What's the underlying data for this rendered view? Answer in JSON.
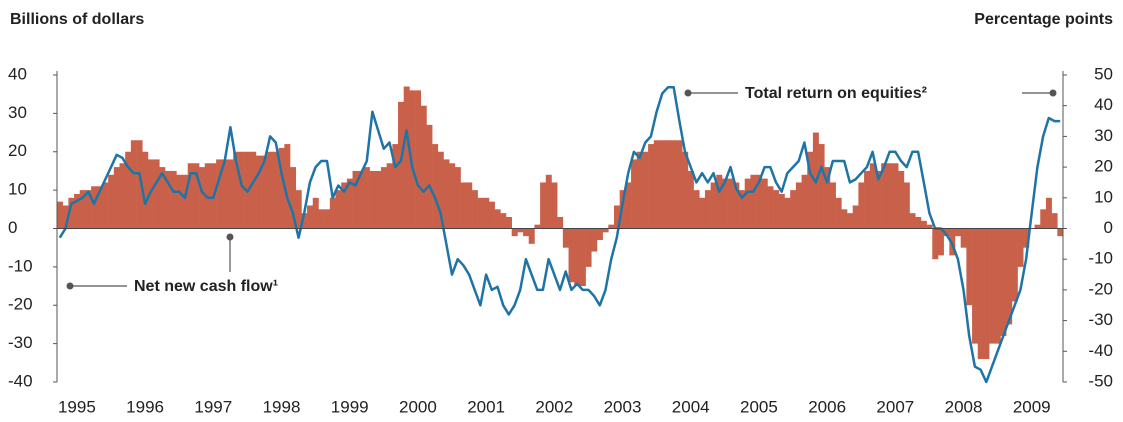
{
  "chart_data": {
    "type": "bar_line",
    "y_label": "Billions of dollars",
    "y2_label": "Percentage points",
    "annotations": [
      "Total return on equities²",
      "Net new cash flow¹"
    ],
    "categories": [
      null,
      null,
      null,
      "1995",
      null,
      null,
      null,
      null,
      null,
      null,
      null,
      null,
      null,
      null,
      null,
      "1996",
      null,
      null,
      null,
      null,
      null,
      null,
      null,
      null,
      null,
      null,
      null,
      "1997",
      null,
      null,
      null,
      null,
      null,
      null,
      null,
      null,
      null,
      null,
      null,
      "1998",
      null,
      null,
      null,
      null,
      null,
      null,
      null,
      null,
      null,
      null,
      null,
      "1999",
      null,
      null,
      null,
      null,
      null,
      null,
      null,
      null,
      null,
      null,
      null,
      "2000",
      null,
      null,
      null,
      null,
      null,
      null,
      null,
      null,
      null,
      null,
      null,
      "2001",
      null,
      null,
      null,
      null,
      null,
      null,
      null,
      null,
      null,
      null,
      null,
      "2002",
      null,
      null,
      null,
      null,
      null,
      null,
      null,
      null,
      null,
      null,
      null,
      "2003",
      null,
      null,
      null,
      null,
      null,
      null,
      null,
      null,
      null,
      null,
      null,
      "2004",
      null,
      null,
      null,
      null,
      null,
      null,
      null,
      null,
      null,
      null,
      null,
      "2005",
      null,
      null,
      null,
      null,
      null,
      null,
      null,
      null,
      null,
      null,
      null,
      "2006",
      null,
      null,
      null,
      null,
      null,
      null,
      null,
      null,
      null,
      null,
      null,
      "2007",
      null,
      null,
      null,
      null,
      null,
      null,
      null,
      null,
      null,
      null,
      null,
      "2008",
      null,
      null,
      null,
      null,
      null,
      null,
      null,
      null,
      null,
      null,
      null,
      "2009",
      null,
      null,
      null,
      null,
      null
    ],
    "series": [
      {
        "name": "Net new cash flow¹",
        "type": "bar",
        "color": "#c9614a",
        "axis": "y",
        "values": [
          7,
          6,
          8,
          9,
          10,
          10,
          11,
          11,
          12,
          14,
          16,
          17,
          20,
          23,
          23,
          20,
          18,
          18,
          16,
          15,
          15,
          14,
          14,
          17,
          17,
          16,
          17,
          17,
          18,
          18,
          18,
          20,
          20,
          20,
          20,
          19,
          19,
          20,
          20,
          21,
          22,
          16,
          10,
          4,
          6,
          8,
          5,
          5,
          8,
          10,
          12,
          13,
          15,
          15,
          16,
          15,
          15,
          16,
          17,
          22,
          33,
          37,
          36,
          36,
          32,
          27,
          22,
          20,
          18,
          17,
          16,
          12,
          12,
          10,
          8,
          8,
          7,
          5,
          4,
          3,
          -2,
          -1,
          -2,
          -4,
          1,
          12,
          14,
          12,
          3,
          -5,
          -14,
          -15,
          -15,
          -10,
          -6,
          -3,
          -1,
          1,
          6,
          10,
          12,
          18,
          20,
          20,
          22,
          23,
          23,
          23,
          23,
          23,
          20,
          15,
          10,
          8,
          10,
          12,
          14,
          13,
          13,
          12,
          10,
          13,
          14,
          14,
          13,
          11,
          10,
          9,
          8,
          10,
          12,
          14,
          20,
          25,
          22,
          16,
          12,
          8,
          5,
          4,
          6,
          12,
          15,
          17,
          15,
          17,
          17,
          17,
          15,
          12,
          4,
          3,
          2,
          1,
          -8,
          -7,
          -2,
          -7,
          -2,
          -5,
          -20,
          -30,
          -34,
          -34,
          -30,
          -30,
          -28,
          -25,
          -19,
          -10,
          -5,
          0,
          1,
          5,
          8,
          4,
          -2
        ]
      },
      {
        "name": "Total return on equities²",
        "type": "line",
        "color": "#1f74a6",
        "axis": "y2",
        "values": [
          -3,
          0,
          8,
          9,
          10,
          12,
          8,
          12,
          16,
          20,
          24,
          23,
          20,
          18,
          18,
          8,
          12,
          15,
          18,
          15,
          12,
          12,
          10,
          18,
          18,
          12,
          10,
          10,
          16,
          22,
          33,
          22,
          14,
          12,
          15,
          18,
          22,
          30,
          28,
          18,
          10,
          5,
          -3,
          5,
          15,
          20,
          22,
          22,
          10,
          14,
          12,
          15,
          14,
          18,
          22,
          38,
          32,
          26,
          28,
          20,
          22,
          32,
          20,
          14,
          12,
          14,
          10,
          5,
          -5,
          -15,
          -10,
          -12,
          -15,
          -20,
          -25,
          -15,
          -20,
          -19,
          -25,
          -28,
          -25,
          -20,
          -10,
          -15,
          -20,
          -20,
          -10,
          -15,
          -20,
          -14,
          -20,
          -18,
          -20,
          -20,
          -22,
          -25,
          -20,
          -10,
          -3,
          8,
          18,
          25,
          23,
          28,
          30,
          38,
          44,
          46,
          46,
          35,
          25,
          20,
          15,
          18,
          15,
          18,
          12,
          15,
          20,
          13,
          10,
          12,
          12,
          15,
          20,
          20,
          15,
          12,
          18,
          20,
          22,
          28,
          18,
          15,
          20,
          15,
          22,
          22,
          22,
          15,
          16,
          18,
          20,
          25,
          16,
          20,
          25,
          25,
          22,
          20,
          25,
          25,
          15,
          5,
          0,
          0,
          -2,
          -5,
          -10,
          -20,
          -35,
          -45,
          -46,
          -50,
          -45,
          -40,
          -35,
          -30,
          -25,
          -20,
          -10,
          5,
          20,
          30,
          36,
          35,
          35
        ]
      }
    ],
    "ylim": [
      -40,
      40
    ],
    "yticks": [
      -40,
      -30,
      -20,
      -10,
      0,
      10,
      20,
      30,
      40
    ],
    "y2lim": [
      -50,
      50
    ],
    "y2ticks": [
      -50,
      -40,
      -30,
      -20,
      -10,
      0,
      10,
      20,
      30,
      40,
      50
    ]
  }
}
